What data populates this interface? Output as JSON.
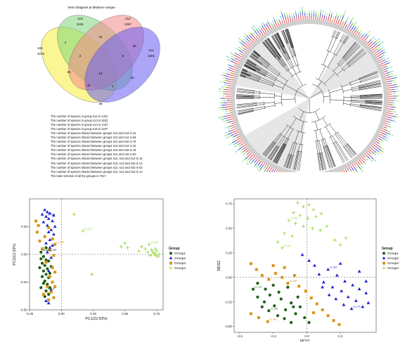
{
  "venn": {
    "title": "Venn Diagram at distance unique",
    "sets": [
      {
        "name": "s16",
        "count": "1076",
        "color": "#f6ef3b"
      },
      {
        "name": "s13",
        "count": "3161",
        "color": "#7fd67a"
      },
      {
        "name": "s12",
        "count": "1287",
        "color": "#f48a8a"
      },
      {
        "name": "s14",
        "count": "1301",
        "color": "#6a5cf2"
      }
    ],
    "regions": [
      {
        "label": "4"
      },
      {
        "label": "24"
      },
      {
        "label": "29"
      },
      {
        "label": "2"
      },
      {
        "label": "5"
      },
      {
        "label": "24"
      },
      {
        "label": "12"
      },
      {
        "label": "15"
      },
      {
        "label": "40"
      },
      {
        "label": "1"
      },
      {
        "label": "36"
      }
    ],
    "stats": [
      "The number of species in group s12 is 1421",
      "The number of species in group s13 is 3222",
      "The number of species in group s14 is 1437",
      "The number of species in group s16 is 1107",
      "The number of species shared between groups s12 and s13 is 41",
      "The number of species shared between groups s12 and s14 is 84",
      "The number of species shared between groups s12 and s16 is 76",
      "The number of species shared between groups s13 and s14 is 31",
      "The number of species shared between groups s13 and s16 is 19",
      "The number of species shared between groups s14 and s16 is 50",
      "The number of species shared between groups s12, s13 and s14 is 15",
      "The number of species shared between groups s12, s13 and s16 is 14",
      "The number of species shared between groups s12, s14 and s16 is 52",
      "The number of species shared between groups s13, s14 and s16 is 13",
      "The total richness of all the groups is 7017"
    ]
  },
  "chart_data": [
    {
      "type": "scatter",
      "title": "",
      "xlabel": "PC1(22.53%)",
      "ylabel": "PC2(13.33%)",
      "xlim": [
        -0.25,
        0.8
      ],
      "ylim": [
        -0.5,
        0.5
      ],
      "xticks": [
        "-0.25",
        "0.00",
        "0.25",
        "0.50",
        "0.75"
      ],
      "yticks": [
        "-0.50",
        "-0.25",
        "0.00",
        "0.25"
      ],
      "grid": false,
      "legend": {
        "title": "Group",
        "position": "right"
      },
      "series": [
        {
          "name": "Group1",
          "color": "#1a5e12",
          "marker": "circle",
          "points": [
            [
              -0.16,
              0.02
            ],
            [
              -0.14,
              -0.02
            ],
            [
              -0.12,
              -0.05
            ],
            [
              -0.15,
              -0.08
            ],
            [
              -0.13,
              -0.1
            ],
            [
              -0.11,
              -0.13
            ],
            [
              -0.14,
              -0.15
            ],
            [
              -0.12,
              -0.18
            ],
            [
              -0.1,
              -0.21
            ],
            [
              -0.13,
              -0.24
            ],
            [
              -0.11,
              -0.27
            ],
            [
              -0.09,
              -0.3
            ],
            [
              -0.12,
              -0.33
            ],
            [
              -0.1,
              -0.36
            ],
            [
              -0.16,
              -0.04
            ],
            [
              -0.17,
              -0.12
            ],
            [
              -0.15,
              -0.2
            ],
            [
              -0.14,
              -0.26
            ],
            [
              -0.1,
              -0.06
            ],
            [
              -0.08,
              -0.11
            ],
            [
              -0.12,
              0.06
            ],
            [
              -0.09,
              -0.17
            ],
            [
              -0.16,
              -0.3
            ],
            [
              -0.13,
              -0.38
            ]
          ]
        },
        {
          "name": "Group2",
          "color": "#2222cc",
          "marker": "triangle",
          "points": [
            [
              -0.13,
              0.4
            ],
            [
              -0.11,
              0.38
            ],
            [
              -0.09,
              0.37
            ],
            [
              -0.12,
              0.34
            ],
            [
              -0.1,
              0.32
            ],
            [
              -0.14,
              0.29
            ],
            [
              -0.07,
              0.3
            ],
            [
              -0.11,
              0.26
            ],
            [
              -0.08,
              0.22
            ],
            [
              -0.06,
              0.18
            ],
            [
              -0.1,
              0.2
            ],
            [
              -0.05,
              0.25
            ],
            [
              -0.09,
              0.13
            ],
            [
              -0.12,
              0.1
            ],
            [
              -0.07,
              0.08
            ],
            [
              -0.11,
              0.02
            ],
            [
              -0.08,
              -0.03
            ],
            [
              -0.1,
              -0.15
            ],
            [
              -0.08,
              -0.32
            ],
            [
              -0.1,
              -0.44
            ],
            [
              -0.12,
              -0.42
            ],
            [
              -0.06,
              0.35
            ],
            [
              -0.15,
              0.36
            ],
            [
              -0.09,
              0.06
            ]
          ]
        },
        {
          "name": "Group3",
          "color": "#d99418",
          "marker": "square",
          "points": [
            [
              -0.2,
              0.3
            ],
            [
              -0.19,
              0.2
            ],
            [
              -0.17,
              0.12
            ],
            [
              -0.13,
              0.16
            ],
            [
              -0.1,
              0.24
            ],
            [
              -0.07,
              0.14
            ],
            [
              -0.05,
              0.09
            ],
            [
              -0.09,
              0.04
            ],
            [
              -0.06,
              -0.01
            ],
            [
              -0.12,
              -0.07
            ],
            [
              -0.07,
              -0.12
            ],
            [
              -0.05,
              -0.16
            ],
            [
              -0.09,
              -0.2
            ],
            [
              -0.07,
              -0.25
            ],
            [
              -0.05,
              -0.29
            ],
            [
              -0.08,
              -0.34
            ],
            [
              -0.06,
              -0.39
            ],
            [
              -0.11,
              -0.29
            ],
            [
              -0.14,
              -0.36
            ],
            [
              -0.1,
              -0.41
            ],
            [
              -0.18,
              0.26
            ],
            [
              -0.15,
              0.05
            ]
          ]
        },
        {
          "name": "Group4",
          "color": "#8fd62a",
          "marker": "cross",
          "points": [
            [
              0.1,
              0.36
            ],
            [
              0.17,
              0.21
            ],
            [
              0.24,
              -0.18
            ],
            [
              0.47,
              0.07
            ],
            [
              0.5,
              0.1
            ],
            [
              0.52,
              0.06
            ],
            [
              0.61,
              0.03
            ],
            [
              0.63,
              0.07
            ],
            [
              0.66,
              0.05
            ],
            [
              0.69,
              0.09
            ],
            [
              0.71,
              0.04
            ],
            [
              0.73,
              0.01
            ],
            [
              0.74,
              -0.01
            ],
            [
              0.75,
              0.03
            ],
            [
              0.76,
              -0.02
            ],
            [
              0.72,
              0.02
            ],
            [
              0.7,
              -0.01
            ],
            [
              0.74,
              0.05
            ],
            [
              0.77,
              0.0
            ],
            [
              0.68,
              0.02
            ]
          ]
        }
      ],
      "annotations": [
        "s1.109",
        "s1.315",
        "s1.250",
        "s1.260",
        "s1.115",
        "s1.045",
        "s1.074",
        "s1.170",
        "s1.118"
      ]
    },
    {
      "type": "scatter",
      "title": "",
      "xlabel": "MDS1",
      "ylabel": "MDS2",
      "xlim": [
        -0.65,
        0.62
      ],
      "ylim": [
        -0.56,
        0.8
      ],
      "xticks": [
        "-0.6",
        "-0.3",
        "0.0",
        "0.3"
      ],
      "yticks": [
        "-0.50",
        "-0.25",
        "0.00",
        "0.25",
        "0.50",
        "0.75"
      ],
      "grid": false,
      "legend": {
        "title": "Group",
        "position": "right"
      },
      "series": [
        {
          "name": "Group1",
          "color": "#1a5e12",
          "marker": "circle",
          "points": [
            [
              -0.48,
              -0.12
            ],
            [
              -0.44,
              -0.2
            ],
            [
              -0.38,
              -0.25
            ],
            [
              -0.33,
              -0.18
            ],
            [
              -0.29,
              -0.29
            ],
            [
              -0.23,
              -0.22
            ],
            [
              -0.19,
              -0.33
            ],
            [
              -0.14,
              -0.26
            ],
            [
              -0.1,
              -0.37
            ],
            [
              -0.06,
              -0.3
            ],
            [
              -0.02,
              -0.41
            ],
            [
              -0.4,
              -0.3
            ],
            [
              -0.34,
              -0.34
            ],
            [
              -0.26,
              -0.39
            ],
            [
              -0.2,
              -0.42
            ],
            [
              -0.14,
              -0.46
            ],
            [
              -0.44,
              -0.06
            ],
            [
              -0.37,
              -0.12
            ],
            [
              -0.3,
              -0.08
            ],
            [
              -0.25,
              -0.15
            ],
            [
              -0.17,
              -0.1
            ],
            [
              -0.08,
              -0.2
            ],
            [
              -0.12,
              -0.3
            ],
            [
              0.02,
              -0.46
            ]
          ]
        },
        {
          "name": "Group2",
          "color": "#2222cc",
          "marker": "triangle",
          "points": [
            [
              0.07,
              0.12
            ],
            [
              0.11,
              0.03
            ],
            [
              0.15,
              -0.05
            ],
            [
              0.19,
              0.08
            ],
            [
              0.23,
              -0.1
            ],
            [
              0.27,
              0.02
            ],
            [
              0.31,
              -0.14
            ],
            [
              0.34,
              -0.04
            ],
            [
              0.37,
              -0.2
            ],
            [
              0.41,
              -0.08
            ],
            [
              0.44,
              -0.24
            ],
            [
              0.47,
              -0.12
            ],
            [
              0.5,
              -0.3
            ],
            [
              0.53,
              -0.16
            ],
            [
              0.55,
              -0.26
            ],
            [
              0.4,
              -0.32
            ],
            [
              0.33,
              -0.28
            ],
            [
              0.26,
              -0.22
            ],
            [
              0.2,
              -0.18
            ],
            [
              0.14,
              -0.1
            ],
            [
              -0.04,
              0.23
            ],
            [
              0.02,
              0.17
            ],
            [
              0.3,
              0.14
            ],
            [
              0.47,
              0.06
            ],
            [
              0.53,
              -0.04
            ]
          ]
        },
        {
          "name": "Group3",
          "color": "#d99418",
          "marker": "square",
          "points": [
            [
              -0.5,
              0.14
            ],
            [
              -0.45,
              0.08
            ],
            [
              -0.4,
              0.02
            ],
            [
              -0.34,
              -0.02
            ],
            [
              -0.28,
              0.04
            ],
            [
              -0.22,
              0.0
            ],
            [
              -0.17,
              -0.06
            ],
            [
              -0.11,
              0.02
            ],
            [
              -0.07,
              -0.09
            ],
            [
              -0.01,
              -0.14
            ],
            [
              0.04,
              -0.21
            ],
            [
              0.09,
              -0.27
            ],
            [
              0.14,
              -0.33
            ],
            [
              0.19,
              -0.39
            ],
            [
              0.24,
              -0.44
            ],
            [
              0.29,
              -0.48
            ],
            [
              -0.5,
              -0.37
            ],
            [
              -0.43,
              -0.41
            ],
            [
              -0.35,
              -0.45
            ],
            [
              0.06,
              -0.36
            ],
            [
              -0.2,
              0.1
            ],
            [
              -0.3,
              0.12
            ]
          ]
        },
        {
          "name": "Group4",
          "color": "#8fd62a",
          "marker": "cross",
          "points": [
            [
              -0.08,
              0.76
            ],
            [
              -0.03,
              0.72
            ],
            [
              0.02,
              0.74
            ],
            [
              0.06,
              0.69
            ],
            [
              -0.12,
              0.66
            ],
            [
              -0.06,
              0.63
            ],
            [
              0.01,
              0.6
            ],
            [
              0.08,
              0.62
            ],
            [
              0.13,
              0.65
            ],
            [
              -0.16,
              0.58
            ],
            [
              -0.1,
              0.55
            ],
            [
              -0.03,
              0.52
            ],
            [
              0.05,
              0.5
            ],
            [
              0.12,
              0.48
            ],
            [
              0.18,
              0.52
            ],
            [
              -0.2,
              0.45
            ],
            [
              -0.13,
              0.42
            ],
            [
              0.25,
              0.38
            ],
            [
              0.3,
              0.33
            ],
            [
              -0.26,
              0.36
            ],
            [
              0.35,
              0.4
            ],
            [
              -0.22,
              0.3
            ]
          ]
        }
      ],
      "annotations": [
        "s1.107",
        "s1.262",
        "s1.266",
        "s1.163",
        "s1.190",
        "s1.170",
        "s1.319",
        "s1.301"
      ]
    }
  ]
}
